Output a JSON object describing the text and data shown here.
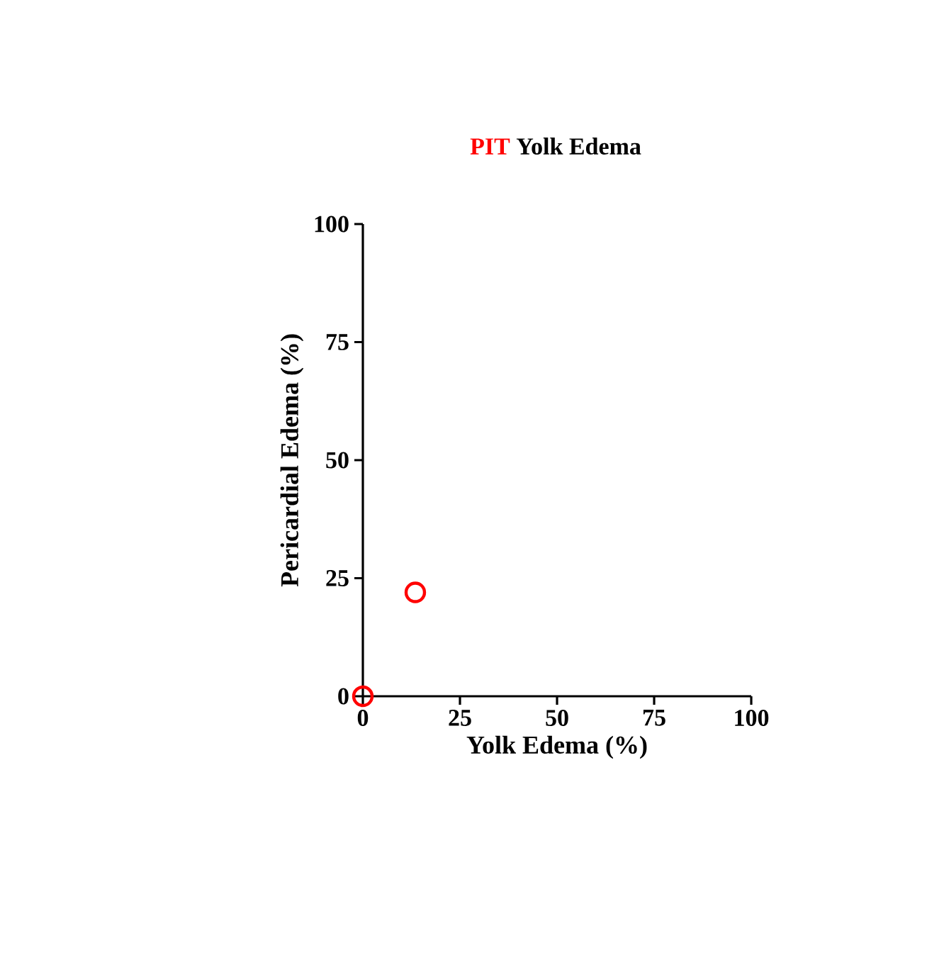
{
  "chart_data": {
    "type": "scatter",
    "title": "Yolk  Edema",
    "xlabel": "Yolk Edema (%)",
    "ylabel": "Pericardial Edema (%)",
    "xlim": [
      0,
      100
    ],
    "ylim": [
      0,
      100
    ],
    "xticks": [
      0,
      25,
      50,
      75,
      100
    ],
    "yticks": [
      0,
      25,
      50,
      75,
      100
    ],
    "marker": "circle",
    "series": [
      {
        "name": "PIT",
        "color": "#ff0000",
        "x": [
          0,
          13.5
        ],
        "values": [
          0,
          22
        ]
      }
    ]
  }
}
